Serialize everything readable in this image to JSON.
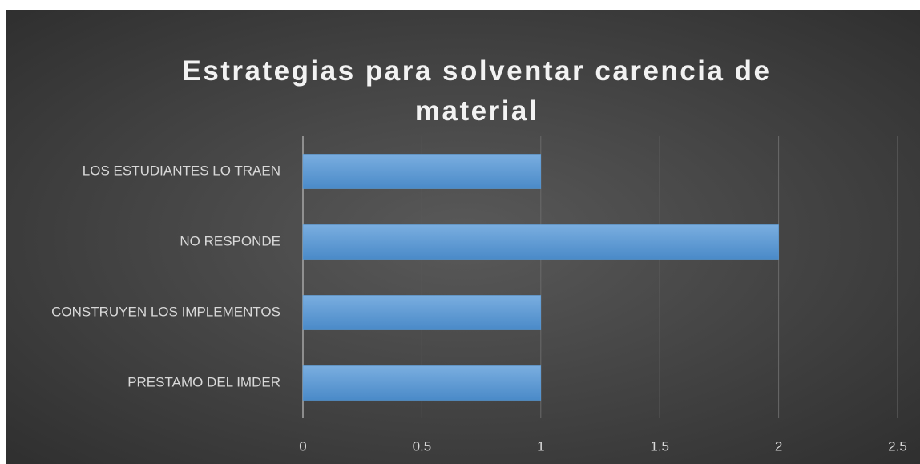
{
  "chart_data": {
    "type": "bar",
    "orientation": "horizontal",
    "title": "Estrategias para solventar carencia de material",
    "categories": [
      "LOS ESTUDIANTES LO TRAEN",
      "NO RESPONDE",
      "CONSTRUYEN LOS IMPLEMENTOS",
      "PRESTAMO DEL IMDER"
    ],
    "values": [
      1,
      2,
      1,
      1
    ],
    "color": "#5b9bd5",
    "xlim": [
      0,
      2.5
    ],
    "xticks": [
      0,
      0.5,
      1,
      1.5,
      2,
      2.5
    ],
    "grid": true
  }
}
